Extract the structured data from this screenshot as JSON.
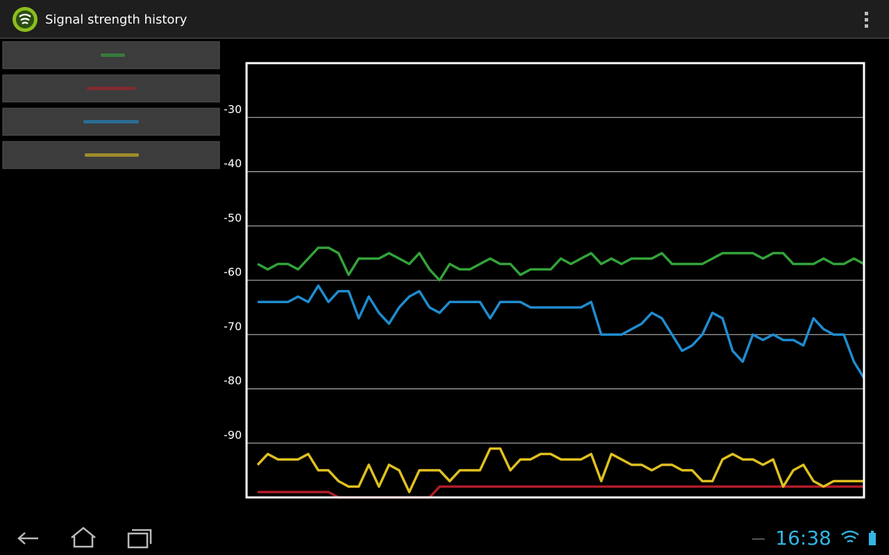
{
  "app_bar": {
    "title": "Signal strength history"
  },
  "status_bar": {
    "time": "16:38"
  },
  "chart_data": {
    "type": "line",
    "ylim": [
      -100,
      -20
    ],
    "yticks": [
      -30,
      -40,
      -50,
      -60,
      -70,
      -80,
      -90
    ],
    "grid": true,
    "series": [
      {
        "color": "#33a33a",
        "values": [
          -57,
          -58,
          -57,
          -57,
          -58,
          -56,
          -54,
          -54,
          -55,
          -59,
          -56,
          -56,
          -56,
          -55,
          -56,
          -57,
          -55,
          -58,
          -60,
          -57,
          -58,
          -58,
          -57,
          -56,
          -57,
          -57,
          -59,
          -58,
          -58,
          -58,
          -56,
          -57,
          -56,
          -55,
          -57,
          -56,
          -57,
          -56,
          -56,
          -56,
          -55,
          -57,
          -57,
          -57,
          -57,
          -56,
          -55,
          -55,
          -55,
          -55,
          -56,
          -55,
          -55,
          -57,
          -57,
          -57,
          -56,
          -57,
          -57,
          -56,
          -57
        ]
      },
      {
        "color": "#b01c2a",
        "values": [
          -99,
          -99,
          -99,
          -99,
          -99,
          -99,
          -99,
          -99,
          -100,
          -100,
          -100,
          -100,
          -100,
          -100,
          -100,
          -100,
          -100,
          -100,
          -98,
          -98,
          -98,
          -98,
          -98,
          -98,
          -98,
          -98,
          -98,
          -98,
          -98,
          -98,
          -98,
          -98,
          -98,
          -98,
          -98,
          -98,
          -98,
          -98,
          -98,
          -98,
          -98,
          -98,
          -98,
          -98,
          -98,
          -98,
          -98,
          -98,
          -98,
          -98,
          -98,
          -98,
          -98,
          -98,
          -98,
          -98,
          -98,
          -98,
          -98,
          -98,
          -98
        ]
      },
      {
        "color": "#1f8ccf",
        "values": [
          -64,
          -64,
          -64,
          -64,
          -63,
          -64,
          -61,
          -64,
          -62,
          -62,
          -67,
          -63,
          -66,
          -68,
          -65,
          -63,
          -62,
          -65,
          -66,
          -64,
          -64,
          -64,
          -64,
          -67,
          -64,
          -64,
          -64,
          -65,
          -65,
          -65,
          -65,
          -65,
          -65,
          -64,
          -70,
          -70,
          -70,
          -69,
          -68,
          -66,
          -67,
          -70,
          -73,
          -72,
          -70,
          -66,
          -67,
          -73,
          -75,
          -70,
          -71,
          -70,
          -71,
          -71,
          -72,
          -67,
          -69,
          -70,
          -70,
          -75,
          -78
        ]
      },
      {
        "color": "#e0c020",
        "values": [
          -94,
          -92,
          -93,
          -93,
          -93,
          -92,
          -95,
          -95,
          -97,
          -98,
          -98,
          -94,
          -98,
          -94,
          -95,
          -99,
          -95,
          -95,
          -95,
          -97,
          -95,
          -95,
          -95,
          -91,
          -91,
          -95,
          -93,
          -93,
          -92,
          -92,
          -93,
          -93,
          -93,
          -92,
          -97,
          -92,
          -93,
          -94,
          -94,
          -95,
          -94,
          -94,
          -95,
          -95,
          -97,
          -97,
          -93,
          -92,
          -93,
          -93,
          -94,
          -93,
          -98,
          -95,
          -94,
          -97,
          -98,
          -97,
          -97,
          -97,
          -97
        ]
      }
    ]
  }
}
